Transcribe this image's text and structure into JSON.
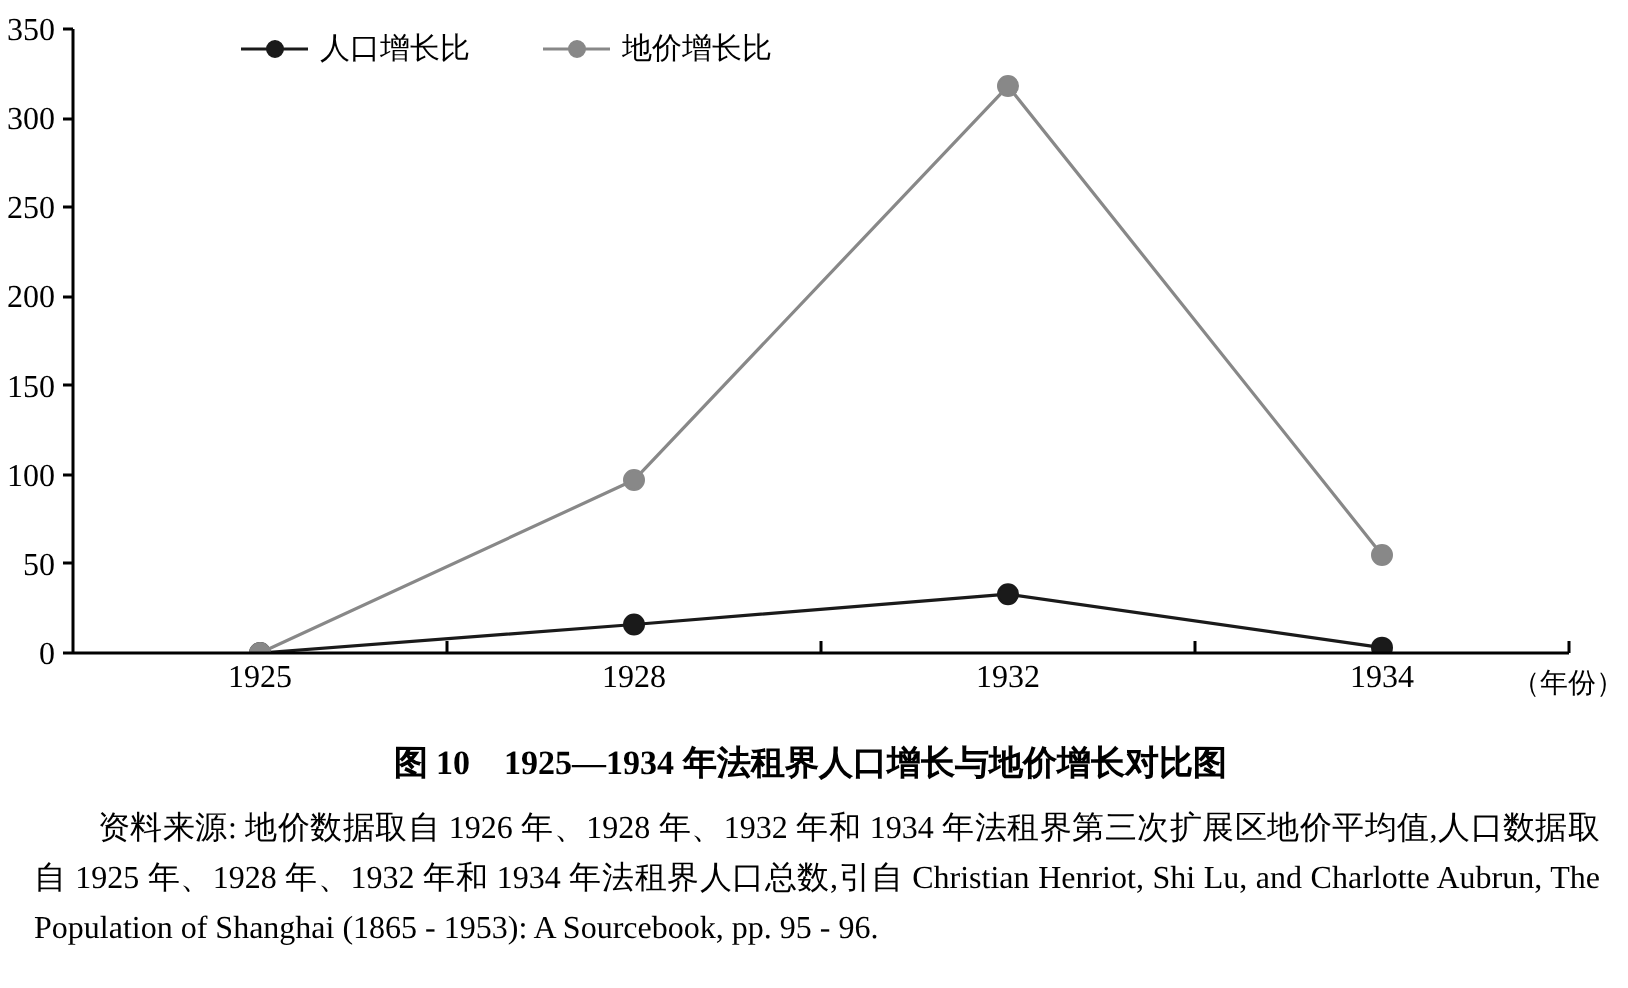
{
  "chart_data": {
    "type": "line",
    "title": "图 10    1925—1934 年法租界人口增长与地价增长对比图",
    "xlabel": "（年份）",
    "categories": [
      "1925",
      "1928",
      "1932",
      "1934"
    ],
    "ylim": [
      0,
      350
    ],
    "yticks": [
      0,
      50,
      100,
      150,
      200,
      250,
      300,
      350
    ],
    "series": [
      {
        "name": "人口增长比",
        "color": "#1a1a1a",
        "values": [
          0,
          16,
          33,
          3
        ]
      },
      {
        "name": "地价增长比",
        "color": "#888888",
        "values": [
          0,
          97,
          318,
          55
        ]
      }
    ],
    "marker": "circle",
    "legend": "top",
    "grid": false,
    "annotations": [
      "资料来源: 地价数据取自 1926 年、1928 年、1932 年和 1934 年法租界第三次扩展区地价平均值,人口数据取自 1925 年、1928 年、1932 年和 1934 年法租界人口总数,引自 Christian Henriot, Shi Lu, and Charlotte Aubrun, The Population of Shanghai (1865 - 1953): A Sourcebook, pp. 95 - 96."
    ]
  }
}
